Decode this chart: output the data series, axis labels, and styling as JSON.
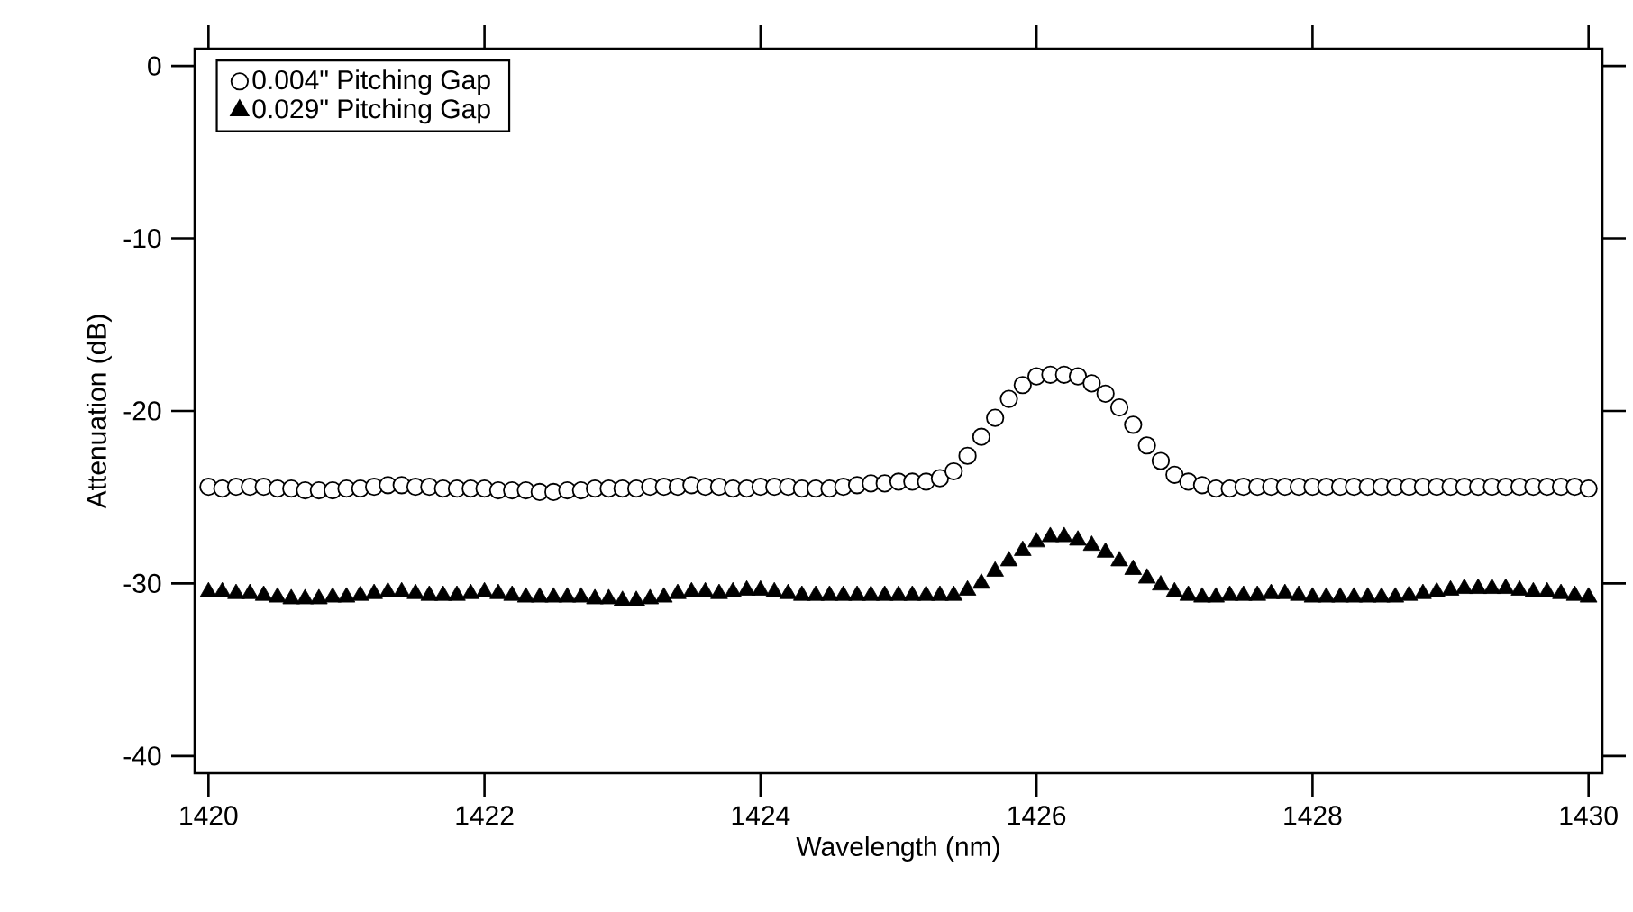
{
  "chart_data": {
    "type": "scatter",
    "xlabel": "Wavelength (nm)",
    "ylabel": "Attenuation (dB)",
    "xlim": [
      1419.9,
      1430.1
    ],
    "ylim": [
      -41,
      1
    ],
    "xticks": [
      1420,
      1422,
      1424,
      1426,
      1428,
      1430
    ],
    "yticks": [
      -40,
      -30,
      -20,
      -10,
      0
    ],
    "legend": "top left",
    "x": [
      1420.0,
      1420.1,
      1420.2,
      1420.3,
      1420.4,
      1420.5,
      1420.6,
      1420.7,
      1420.8,
      1420.9,
      1421.0,
      1421.1,
      1421.2,
      1421.3,
      1421.4,
      1421.5,
      1421.6,
      1421.7,
      1421.8,
      1421.9,
      1422.0,
      1422.1,
      1422.2,
      1422.3,
      1422.4,
      1422.5,
      1422.6,
      1422.7,
      1422.8,
      1422.9,
      1423.0,
      1423.1,
      1423.2,
      1423.3,
      1423.4,
      1423.5,
      1423.6,
      1423.7,
      1423.8,
      1423.9,
      1424.0,
      1424.1,
      1424.2,
      1424.3,
      1424.4,
      1424.5,
      1424.6,
      1424.7,
      1424.8,
      1424.9,
      1425.0,
      1425.1,
      1425.2,
      1425.3,
      1425.4,
      1425.5,
      1425.6,
      1425.7,
      1425.8,
      1425.9,
      1426.0,
      1426.1,
      1426.2,
      1426.3,
      1426.4,
      1426.5,
      1426.6,
      1426.7,
      1426.8,
      1426.9,
      1427.0,
      1427.1,
      1427.2,
      1427.3,
      1427.4,
      1427.5,
      1427.6,
      1427.7,
      1427.8,
      1427.9,
      1428.0,
      1428.1,
      1428.2,
      1428.3,
      1428.4,
      1428.5,
      1428.6,
      1428.7,
      1428.8,
      1428.9,
      1429.0,
      1429.1,
      1429.2,
      1429.3,
      1429.4,
      1429.5,
      1429.6,
      1429.7,
      1429.8,
      1429.9,
      1430.0
    ],
    "series": [
      {
        "name": "0.004\" Pitching Gap",
        "color": "#000000",
        "marker": "circle",
        "values": [
          -24.4,
          -24.5,
          -24.4,
          -24.4,
          -24.4,
          -24.5,
          -24.5,
          -24.6,
          -24.6,
          -24.6,
          -24.5,
          -24.5,
          -24.4,
          -24.3,
          -24.3,
          -24.4,
          -24.4,
          -24.5,
          -24.5,
          -24.5,
          -24.5,
          -24.6,
          -24.6,
          -24.6,
          -24.7,
          -24.7,
          -24.6,
          -24.6,
          -24.5,
          -24.5,
          -24.5,
          -24.5,
          -24.4,
          -24.4,
          -24.4,
          -24.3,
          -24.4,
          -24.4,
          -24.5,
          -24.5,
          -24.4,
          -24.4,
          -24.4,
          -24.5,
          -24.5,
          -24.5,
          -24.4,
          -24.3,
          -24.2,
          -24.2,
          -24.1,
          -24.1,
          -24.1,
          -23.9,
          -23.5,
          -22.6,
          -21.5,
          -20.4,
          -19.3,
          -18.5,
          -18.0,
          -17.9,
          -17.9,
          -18.0,
          -18.4,
          -19.0,
          -19.8,
          -20.8,
          -22.0,
          -22.9,
          -23.7,
          -24.1,
          -24.3,
          -24.5,
          -24.5,
          -24.4,
          -24.4,
          -24.4,
          -24.4,
          -24.4,
          -24.4,
          -24.4,
          -24.4,
          -24.4,
          -24.4,
          -24.4,
          -24.4,
          -24.4,
          -24.4,
          -24.4,
          -24.4,
          -24.4,
          -24.4,
          -24.4,
          -24.4,
          -24.4,
          -24.4,
          -24.4,
          -24.4,
          -24.4,
          -24.5
        ]
      },
      {
        "name": "0.029\" Pitching Gap",
        "color": "#000000",
        "marker": "triangle",
        "values": [
          -30.5,
          -30.5,
          -30.6,
          -30.6,
          -30.7,
          -30.8,
          -30.9,
          -30.9,
          -30.9,
          -30.8,
          -30.8,
          -30.7,
          -30.6,
          -30.5,
          -30.5,
          -30.6,
          -30.7,
          -30.7,
          -30.7,
          -30.6,
          -30.5,
          -30.6,
          -30.7,
          -30.8,
          -30.8,
          -30.8,
          -30.8,
          -30.8,
          -30.9,
          -30.9,
          -31.0,
          -31.0,
          -30.9,
          -30.8,
          -30.6,
          -30.5,
          -30.5,
          -30.6,
          -30.5,
          -30.4,
          -30.4,
          -30.5,
          -30.6,
          -30.7,
          -30.7,
          -30.7,
          -30.7,
          -30.7,
          -30.7,
          -30.7,
          -30.7,
          -30.7,
          -30.7,
          -30.7,
          -30.7,
          -30.4,
          -30.0,
          -29.3,
          -28.7,
          -28.1,
          -27.6,
          -27.3,
          -27.3,
          -27.5,
          -27.8,
          -28.2,
          -28.7,
          -29.2,
          -29.7,
          -30.1,
          -30.5,
          -30.7,
          -30.8,
          -30.8,
          -30.7,
          -30.7,
          -30.7,
          -30.6,
          -30.6,
          -30.7,
          -30.8,
          -30.8,
          -30.8,
          -30.8,
          -30.8,
          -30.8,
          -30.8,
          -30.7,
          -30.6,
          -30.5,
          -30.4,
          -30.3,
          -30.3,
          -30.3,
          -30.3,
          -30.4,
          -30.5,
          -30.5,
          -30.6,
          -30.7,
          -30.8
        ]
      }
    ]
  }
}
